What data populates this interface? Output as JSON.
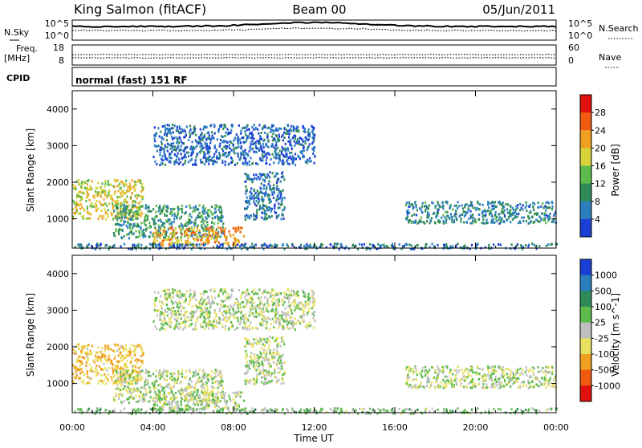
{
  "header": {
    "station": "King Salmon (fitACF)",
    "beam": "Beam 00",
    "date": "05/Jun/2011"
  },
  "noise_panel": {
    "left_label": "N.Sky",
    "left_ticks": [
      "10^5",
      "10^0"
    ],
    "right_label": "N.Search",
    "right_ticks": [
      "10^5",
      "10^0"
    ]
  },
  "freq_panel": {
    "left_label_1": "Freq.",
    "left_label_2": "[MHz]",
    "left_ticks": [
      "18",
      "8"
    ],
    "right_label": "Nave",
    "right_ticks": [
      "60",
      "0"
    ]
  },
  "cpid_panel": {
    "label": "CPID",
    "value": "normal (fast) 151 RF"
  },
  "colors": {
    "power_scale": [
      "#1a3fd6",
      "#2b7fbf",
      "#2e8b57",
      "#5dbb4c",
      "#d8d23a",
      "#f0a020",
      "#f05a10",
      "#e01010"
    ],
    "velocity_scale": [
      "#1a3fd6",
      "#2b7fbf",
      "#2e8b57",
      "#5dbb4c",
      "#c0c0c0",
      "#e8e060",
      "#f0a020",
      "#f05a10",
      "#e01010"
    ]
  },
  "chart_data": [
    {
      "type": "heatmap",
      "quantity": "power",
      "ylabel": "Slant Range [km]",
      "ylim": [
        200,
        4500
      ],
      "y_ticks": [
        "1000",
        "2000",
        "3000",
        "4000"
      ],
      "x_ticks": [
        "00:00",
        "04:00",
        "08:00",
        "12:00",
        "16:00",
        "20:00",
        "00:00"
      ],
      "xlim_hours": [
        0,
        24
      ],
      "colorbar": {
        "label": "Power [dB]",
        "ticks": [
          "4",
          "8",
          "12",
          "16",
          "20",
          "24",
          "28"
        ]
      },
      "echo_regions": [
        {
          "t_start": 0.0,
          "t_end": 3.5,
          "r_low": 1000,
          "r_high": 2100,
          "level_dB": 18
        },
        {
          "t_start": 2.0,
          "t_end": 7.5,
          "r_low": 500,
          "r_high": 1400,
          "level_dB": 10
        },
        {
          "t_start": 4.0,
          "t_end": 8.5,
          "r_low": 300,
          "r_high": 800,
          "level_dB": 22
        },
        {
          "t_start": 8.5,
          "t_end": 10.5,
          "r_low": 1000,
          "r_high": 2300,
          "level_dB": 6
        },
        {
          "t_start": 4.0,
          "t_end": 12.0,
          "r_low": 2500,
          "r_high": 3600,
          "level_dB": 5
        },
        {
          "t_start": 16.5,
          "t_end": 24.0,
          "r_low": 900,
          "r_high": 1500,
          "level_dB": 8
        },
        {
          "t_start": 0.0,
          "t_end": 24.0,
          "r_low": 200,
          "r_high": 350,
          "level_dB": 6
        }
      ]
    },
    {
      "type": "heatmap",
      "quantity": "velocity",
      "ylabel": "Slant Range [km]",
      "xlabel": "Time UT",
      "ylim": [
        200,
        4500
      ],
      "y_ticks": [
        "1000",
        "2000",
        "3000",
        "4000"
      ],
      "x_ticks": [
        "00:00",
        "04:00",
        "08:00",
        "12:00",
        "16:00",
        "20:00",
        "00:00"
      ],
      "xlim_hours": [
        0,
        24
      ],
      "colorbar": {
        "label": "Velocity [m s^-1]",
        "ticks": [
          "1000",
          "500",
          "100",
          "25",
          "-25",
          "-100",
          "-500",
          "-1000"
        ]
      },
      "echo_regions": [
        {
          "t_start": 0.0,
          "t_end": 3.5,
          "r_low": 1000,
          "r_high": 2100,
          "velocity": -100
        },
        {
          "t_start": 2.0,
          "t_end": 7.5,
          "r_low": 500,
          "r_high": 1400,
          "velocity": 0
        },
        {
          "t_start": 4.0,
          "t_end": 8.5,
          "r_low": 300,
          "r_high": 800,
          "velocity": 0
        },
        {
          "t_start": 8.5,
          "t_end": 10.5,
          "r_low": 1000,
          "r_high": 2300,
          "velocity": 0
        },
        {
          "t_start": 4.0,
          "t_end": 12.0,
          "r_low": 2500,
          "r_high": 3600,
          "velocity": 0
        },
        {
          "t_start": 16.5,
          "t_end": 24.0,
          "r_low": 900,
          "r_high": 1500,
          "velocity": 0
        },
        {
          "t_start": 0.0,
          "t_end": 24.0,
          "r_low": 200,
          "r_high": 350,
          "velocity": 50
        }
      ]
    }
  ]
}
